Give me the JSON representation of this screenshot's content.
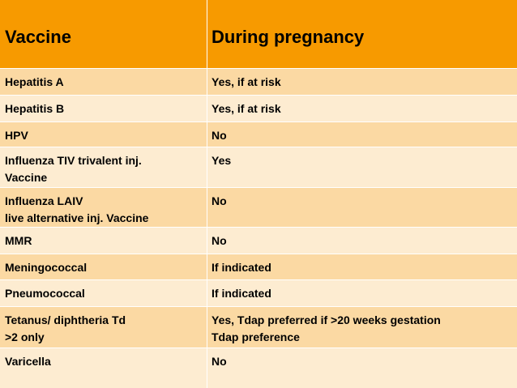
{
  "table": {
    "header": {
      "vaccine": "Vaccine",
      "pregnancy": "During pregnancy"
    },
    "rows": [
      {
        "vaccine": "Hepatitis A",
        "pregnancy": "Yes, if at risk"
      },
      {
        "vaccine": "Hepatitis B",
        "pregnancy": "Yes, if at risk"
      },
      {
        "vaccine": "HPV",
        "pregnancy": "No"
      },
      {
        "vaccine": "Influenza TIV trivalent inj.\nVaccine",
        "pregnancy": "Yes"
      },
      {
        "vaccine": "Influenza LAIV\nlive alternative inj. Vaccine",
        "pregnancy": "No"
      },
      {
        "vaccine": "MMR",
        "pregnancy": "No"
      },
      {
        "vaccine": "Meningococcal",
        "pregnancy": "If indicated"
      },
      {
        "vaccine": "Pneumococcal",
        "pregnancy": "If indicated"
      },
      {
        "vaccine": "Tetanus/ diphtheria Td\n>2 only",
        "pregnancy": "Yes, Tdap preferred if >20 weeks gestation\nTdap preference"
      },
      {
        "vaccine": "Varicella",
        "pregnancy": "No"
      }
    ]
  },
  "colors": {
    "header": "#f79a00",
    "row_odd": "#fbd9a3",
    "row_even": "#fdecd1"
  }
}
